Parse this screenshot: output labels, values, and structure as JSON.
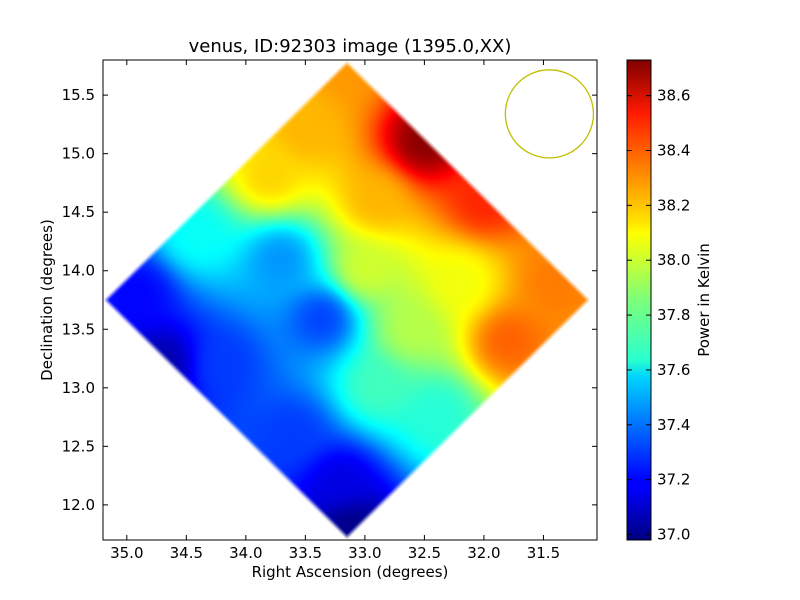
{
  "chart_data": {
    "type": "heatmap",
    "title": "venus, ID:92303 image (1395.0,XX)",
    "xlabel": "Right Ascension (degrees)",
    "ylabel": "Declination (degrees)",
    "x_inverted": true,
    "xlim": [
      35.2,
      31.05
    ],
    "ylim": [
      11.7,
      15.8
    ],
    "x_ticks": [
      35.0,
      34.5,
      34.0,
      33.5,
      33.0,
      32.5,
      32.0,
      31.5
    ],
    "x_tick_labels": [
      "35.0",
      "34.5",
      "34.0",
      "33.5",
      "33.0",
      "32.5",
      "32.0",
      "31.5"
    ],
    "y_ticks": [
      12.0,
      12.5,
      13.0,
      13.5,
      14.0,
      14.5,
      15.0,
      15.5
    ],
    "y_tick_labels": [
      "12.0",
      "12.5",
      "13.0",
      "13.5",
      "14.0",
      "14.5",
      "15.0",
      "15.5"
    ],
    "grid": false,
    "colormap": "jet",
    "colorbar": {
      "label": "Power in Kelvin",
      "min": 36.98,
      "max": 38.73,
      "ticks": [
        37.0,
        37.2,
        37.4,
        37.6,
        37.8,
        38.0,
        38.2,
        38.4,
        38.6
      ],
      "tick_labels": [
        "37.0",
        "37.2",
        "37.4",
        "37.6",
        "37.8",
        "38.0",
        "38.2",
        "38.4",
        "38.6"
      ]
    },
    "map_region": {
      "shape": "diamond",
      "center_ra": 33.15,
      "center_dec": 13.75,
      "half_width_ra": 2.05,
      "half_height_dec": 2.05
    },
    "field_samples": [
      {
        "ra": 33.15,
        "dec": 15.75,
        "value": 38.25
      },
      {
        "ra": 32.5,
        "dec": 15.1,
        "value": 38.72
      },
      {
        "ra": 33.5,
        "dec": 15.2,
        "value": 38.2
      },
      {
        "ra": 33.8,
        "dec": 14.8,
        "value": 38.15
      },
      {
        "ra": 32.9,
        "dec": 14.6,
        "value": 38.2
      },
      {
        "ra": 32.0,
        "dec": 14.6,
        "value": 38.45
      },
      {
        "ra": 31.4,
        "dec": 13.9,
        "value": 38.3
      },
      {
        "ra": 31.8,
        "dec": 13.4,
        "value": 38.35
      },
      {
        "ra": 32.2,
        "dec": 13.9,
        "value": 38.05
      },
      {
        "ra": 32.6,
        "dec": 13.5,
        "value": 37.95
      },
      {
        "ra": 33.0,
        "dec": 14.0,
        "value": 38.0
      },
      {
        "ra": 33.35,
        "dec": 13.6,
        "value": 37.3
      },
      {
        "ra": 33.7,
        "dec": 14.1,
        "value": 37.45
      },
      {
        "ra": 34.4,
        "dec": 14.3,
        "value": 37.65
      },
      {
        "ra": 34.9,
        "dec": 13.8,
        "value": 37.2
      },
      {
        "ra": 34.7,
        "dec": 13.2,
        "value": 37.05
      },
      {
        "ra": 34.2,
        "dec": 13.2,
        "value": 37.3
      },
      {
        "ra": 33.6,
        "dec": 12.6,
        "value": 37.3
      },
      {
        "ra": 32.9,
        "dec": 13.0,
        "value": 37.75
      },
      {
        "ra": 32.4,
        "dec": 12.8,
        "value": 37.7
      },
      {
        "ra": 33.2,
        "dec": 12.2,
        "value": 37.15
      },
      {
        "ra": 33.1,
        "dec": 11.8,
        "value": 36.99
      }
    ],
    "beam_ellipse": {
      "center_ra": 31.45,
      "center_dec": 15.34,
      "radius_deg": 0.37,
      "color": "#bfbf00"
    }
  }
}
